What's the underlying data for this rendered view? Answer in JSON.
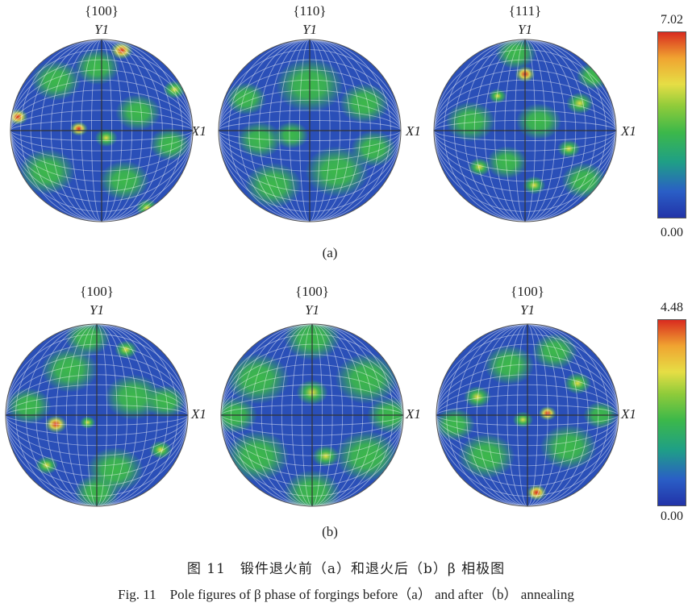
{
  "panel_a": {
    "pole_titles": [
      "{100}",
      "{110}",
      "{111}"
    ],
    "y_axis_label": "Y1",
    "x_axis_label": "X1",
    "label": "(a)",
    "colorbar": {
      "max": "7.02",
      "min": "0.00"
    }
  },
  "panel_b": {
    "pole_titles": [
      "{100}",
      "{100}",
      "{100}"
    ],
    "y_axis_label": "Y1",
    "x_axis_label": "X1",
    "label": "(b)",
    "colorbar": {
      "max": "4.48",
      "min": "0.00"
    }
  },
  "caption": {
    "chinese": "图 11　锻件退火前（a）和退火后（b）β 相极图",
    "english": "Fig. 11　Pole figures of β phase of forgings before（a） and after（b） annealing"
  },
  "colors": {
    "low": "#2233a8",
    "mid": "#3cb84a",
    "high_mid": "#e6de45",
    "high": "#d92b1f"
  }
}
